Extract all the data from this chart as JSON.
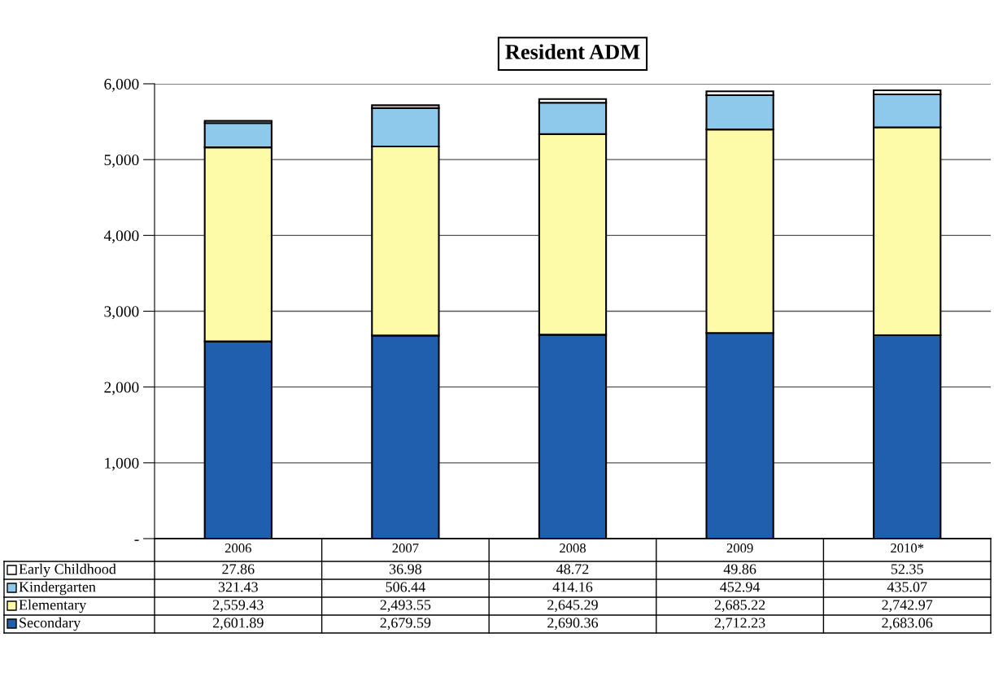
{
  "chart_data": {
    "type": "bar",
    "title": "Resident ADM",
    "stacked": true,
    "categories": [
      "2006",
      "2007",
      "2008",
      "2009",
      "2010*"
    ],
    "series": [
      {
        "name": "Secondary",
        "color": "#1f5fae",
        "values": [
          2601.89,
          2679.59,
          2690.36,
          2712.23,
          2683.06
        ],
        "value_labels": [
          "2,601.89",
          "2,679.59",
          "2,690.36",
          "2,712.23",
          "2,683.06"
        ]
      },
      {
        "name": "Elementary",
        "color": "#fdfaa8",
        "values": [
          2559.43,
          2493.55,
          2645.29,
          2685.22,
          2742.97
        ],
        "value_labels": [
          "2,559.43",
          "2,493.55",
          "2,645.29",
          "2,685.22",
          "2,742.97"
        ]
      },
      {
        "name": "Kindergarten",
        "color": "#8ec8ea",
        "values": [
          321.43,
          506.44,
          414.16,
          452.94,
          435.07
        ],
        "value_labels": [
          "321.43",
          "506.44",
          "414.16",
          "452.94",
          "435.07"
        ]
      },
      {
        "name": "Early Childhood",
        "color": "#ffffff",
        "values": [
          27.86,
          36.98,
          48.72,
          49.86,
          52.35
        ],
        "value_labels": [
          "27.86",
          "36.98",
          "48.72",
          "49.86",
          "52.35"
        ]
      }
    ],
    "ylim": [
      0,
      6000
    ],
    "yticks": [
      {
        "value": 0,
        "label": "-"
      },
      {
        "value": 1000,
        "label": "1,000"
      },
      {
        "value": 2000,
        "label": "2,000"
      },
      {
        "value": 3000,
        "label": "3,000"
      },
      {
        "value": 4000,
        "label": "4,000"
      },
      {
        "value": 5000,
        "label": "5,000"
      },
      {
        "value": 6000,
        "label": "6,000"
      }
    ],
    "grid": "y",
    "legend": "bottom left"
  }
}
